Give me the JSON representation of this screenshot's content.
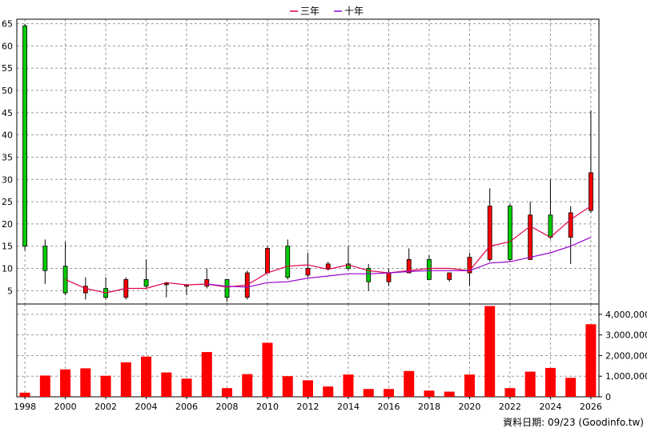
{
  "chart_data": [
    {
      "type": "candlestick",
      "legend": [
        {
          "name": "三年",
          "color": "#e0004a"
        },
        {
          "name": "十年",
          "color": "#9900cc"
        }
      ],
      "legend_position": "top-center",
      "ylim": [
        2,
        66
      ],
      "yticks": [
        5,
        10,
        15,
        20,
        25,
        30,
        35,
        40,
        45,
        50,
        55,
        60,
        65
      ],
      "xlim": [
        1997.6,
        2026.4
      ],
      "xticks": [
        1998,
        2000,
        2002,
        2004,
        2006,
        2008,
        2010,
        2012,
        2014,
        2016,
        2018,
        2020,
        2022,
        2024,
        2026
      ],
      "grid": true,
      "up_color": "#ff0000",
      "down_color": "#00cc00",
      "candles": [
        {
          "x": 1998,
          "open": 64.5,
          "close": 15.0,
          "high": 65.0,
          "low": 14.0
        },
        {
          "x": 1999,
          "open": 15.0,
          "close": 9.5,
          "high": 16.5,
          "low": 6.5
        },
        {
          "x": 2000,
          "open": 10.5,
          "close": 4.5,
          "high": 16.0,
          "low": 4.0
        },
        {
          "x": 2001,
          "open": 4.5,
          "close": 6.0,
          "high": 8.0,
          "low": 3.0
        },
        {
          "x": 2002,
          "open": 5.5,
          "close": 3.5,
          "high": 8.0,
          "low": 3.0
        },
        {
          "x": 2003,
          "open": 3.5,
          "close": 7.5,
          "high": 8.0,
          "low": 3.0
        },
        {
          "x": 2004,
          "open": 7.5,
          "close": 6.0,
          "high": 12.0,
          "low": 5.5
        },
        {
          "x": 2005,
          "open": 6.5,
          "close": 6.6,
          "high": 7.0,
          "low": 3.5
        },
        {
          "x": 2006,
          "open": 6.0,
          "close": 6.3,
          "high": 6.5,
          "low": 4.0
        },
        {
          "x": 2007,
          "open": 6.0,
          "close": 7.5,
          "high": 10.0,
          "low": 5.5
        },
        {
          "x": 2008,
          "open": 7.5,
          "close": 3.5,
          "high": 7.5,
          "low": 2.5
        },
        {
          "x": 2009,
          "open": 3.5,
          "close": 9.0,
          "high": 9.5,
          "low": 3.0
        },
        {
          "x": 2010,
          "open": 9.0,
          "close": 14.5,
          "high": 15.0,
          "low": 9.0
        },
        {
          "x": 2011,
          "open": 15.0,
          "close": 8.0,
          "high": 16.5,
          "low": 7.5
        },
        {
          "x": 2012,
          "open": 8.5,
          "close": 10.0,
          "high": 13.5,
          "low": 8.0
        },
        {
          "x": 2013,
          "open": 10.0,
          "close": 11.0,
          "high": 11.5,
          "low": 9.5
        },
        {
          "x": 2014,
          "open": 11.0,
          "close": 10.0,
          "high": 15.0,
          "low": 9.5
        },
        {
          "x": 2015,
          "open": 10.0,
          "close": 7.0,
          "high": 11.0,
          "low": 5.0
        },
        {
          "x": 2016,
          "open": 7.0,
          "close": 9.0,
          "high": 10.0,
          "low": 6.0
        },
        {
          "x": 2017,
          "open": 9.0,
          "close": 12.0,
          "high": 14.5,
          "low": 9.0
        },
        {
          "x": 2018,
          "open": 12.0,
          "close": 7.5,
          "high": 13.0,
          "low": 7.5
        },
        {
          "x": 2019,
          "open": 7.5,
          "close": 9.0,
          "high": 9.0,
          "low": 7.0
        },
        {
          "x": 2020,
          "open": 9.0,
          "close": 12.5,
          "high": 13.5,
          "low": 6.0
        },
        {
          "x": 2021,
          "open": 12.0,
          "close": 24.0,
          "high": 28.0,
          "low": 11.5
        },
        {
          "x": 2022,
          "open": 24.0,
          "close": 12.0,
          "high": 24.5,
          "low": 11.5
        },
        {
          "x": 2023,
          "open": 12.0,
          "close": 22.0,
          "high": 25.0,
          "low": 12.0
        },
        {
          "x": 2024,
          "open": 22.0,
          "close": 17.0,
          "high": 30.0,
          "low": 16.5
        },
        {
          "x": 2025,
          "open": 17.0,
          "close": 22.5,
          "high": 24.0,
          "low": 11.0
        },
        {
          "x": 2026,
          "open": 23.0,
          "close": 31.5,
          "high": 45.5,
          "low": 22.5
        }
      ],
      "series": [
        {
          "name": "三年",
          "x": [
            2000,
            2001,
            2002,
            2003,
            2004,
            2005,
            2006,
            2007,
            2008,
            2009,
            2010,
            2011,
            2012,
            2013,
            2014,
            2015,
            2016,
            2017,
            2018,
            2019,
            2020,
            2021,
            2022,
            2023,
            2024,
            2025,
            2026
          ],
          "values": [
            7.5,
            5.5,
            4.5,
            5.5,
            5.5,
            6.8,
            6.3,
            6.5,
            5.8,
            6.3,
            9.0,
            10.5,
            10.8,
            9.8,
            10.8,
            9.5,
            9.0,
            9.5,
            10.0,
            10.0,
            9.5,
            15.0,
            16.0,
            19.5,
            17.0,
            21.0,
            24.0
          ]
        },
        {
          "name": "十年",
          "x": [
            2007,
            2008,
            2009,
            2010,
            2011,
            2012,
            2013,
            2014,
            2015,
            2016,
            2017,
            2018,
            2019,
            2020,
            2021,
            2022,
            2023,
            2024,
            2025,
            2026
          ],
          "values": [
            6.5,
            6.0,
            5.8,
            6.8,
            7.0,
            7.8,
            8.3,
            8.8,
            8.8,
            9.0,
            9.3,
            9.5,
            9.5,
            9.5,
            11.2,
            11.5,
            12.5,
            13.5,
            15.0,
            17.0
          ]
        }
      ]
    },
    {
      "type": "bar",
      "ylim": [
        0,
        4500000
      ],
      "yticks": [
        "0",
        "1,000,000",
        "2,000,000",
        "3,000,000",
        "4,000,000"
      ],
      "ytick_values": [
        0,
        1000000,
        2000000,
        3000000,
        4000000
      ],
      "grid": true,
      "color": "#ff0000",
      "categories": [
        1998,
        1999,
        2000,
        2001,
        2002,
        2003,
        2004,
        2005,
        2006,
        2007,
        2008,
        2009,
        2010,
        2011,
        2012,
        2013,
        2014,
        2015,
        2016,
        2017,
        2018,
        2019,
        2020,
        2021,
        2022,
        2023,
        2024,
        2025,
        2026
      ],
      "values": [
        200000,
        1030000,
        1330000,
        1380000,
        1020000,
        1670000,
        1950000,
        1180000,
        880000,
        2170000,
        420000,
        1100000,
        2620000,
        1000000,
        800000,
        500000,
        1080000,
        380000,
        380000,
        1250000,
        300000,
        250000,
        1080000,
        4400000,
        420000,
        1220000,
        1400000,
        920000,
        3520000
      ]
    }
  ],
  "source_label": "資料日期: 09/23  (Goodinfo.tw)"
}
